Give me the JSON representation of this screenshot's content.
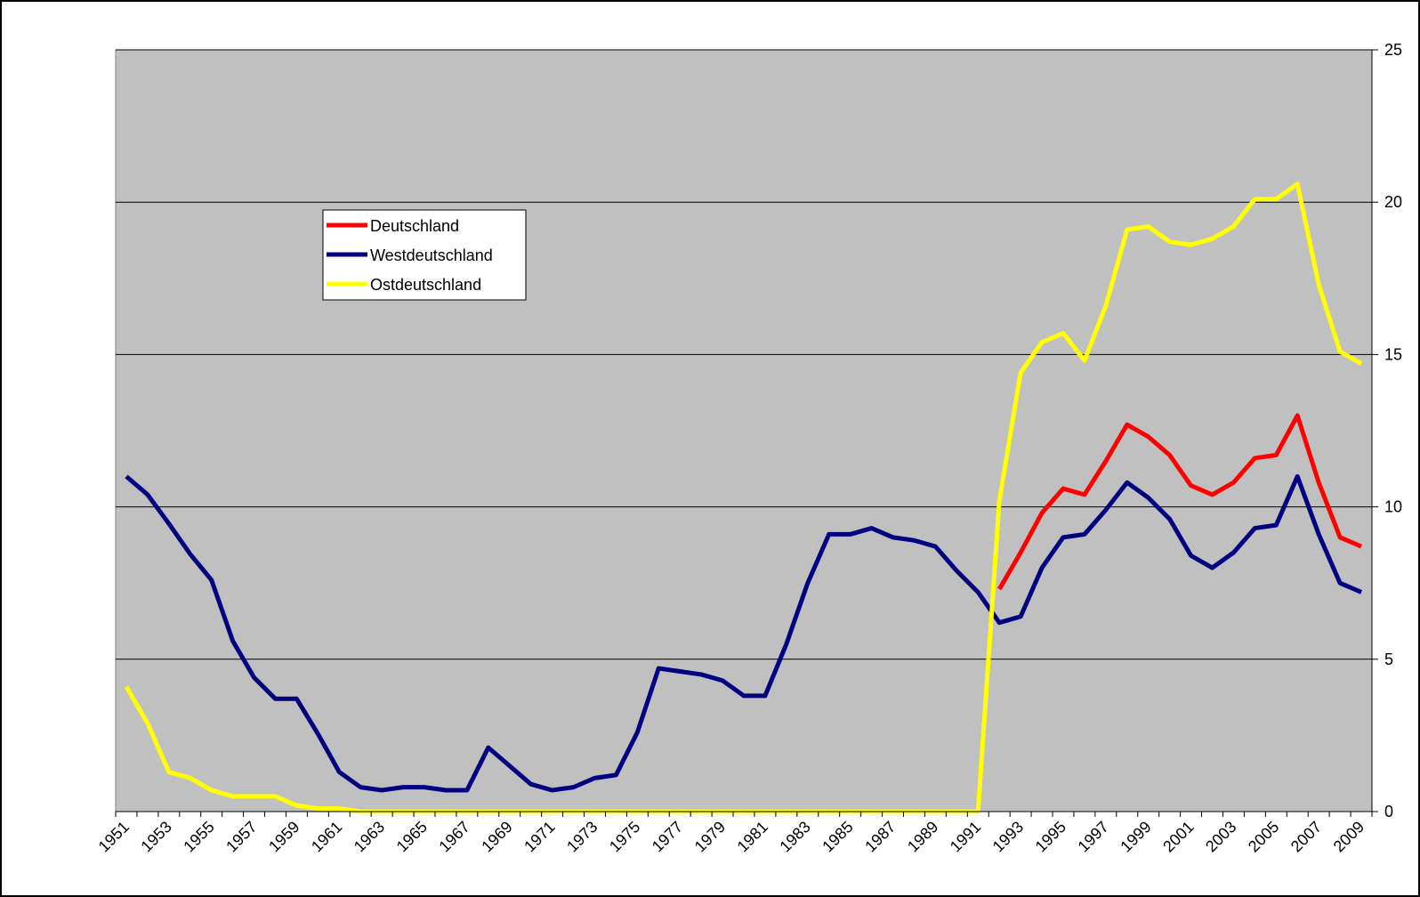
{
  "chart_data": {
    "type": "line",
    "categories": [
      "1951",
      null,
      "1953",
      null,
      "1955",
      null,
      "1957",
      null,
      "1959",
      null,
      "1961",
      null,
      "1963",
      null,
      "1965",
      null,
      "1967",
      null,
      "1969",
      null,
      "1971",
      null,
      "1973",
      null,
      "1975",
      null,
      "1977",
      null,
      "1979",
      null,
      "1981",
      null,
      "1983",
      null,
      "1985",
      null,
      "1987",
      null,
      "1989",
      null,
      "1991",
      null,
      "1993",
      null,
      "1995",
      null,
      "1997",
      null,
      "1999",
      null,
      "2001",
      null,
      "2003",
      null,
      "2005",
      null,
      "2007",
      null,
      "2009"
    ],
    "series": [
      {
        "name": "Deutschland",
        "color": "#ff0000",
        "values": [
          null,
          null,
          null,
          null,
          null,
          null,
          null,
          null,
          null,
          null,
          null,
          null,
          null,
          null,
          null,
          null,
          null,
          null,
          null,
          null,
          null,
          null,
          null,
          null,
          null,
          null,
          null,
          null,
          null,
          null,
          null,
          null,
          null,
          null,
          null,
          null,
          null,
          null,
          null,
          null,
          null,
          7.3,
          8.5,
          9.8,
          10.6,
          10.4,
          11.5,
          12.7,
          12.3,
          11.7,
          10.7,
          10.4,
          10.8,
          11.6,
          11.7,
          13.0,
          10.8,
          9.0,
          8.7
        ]
      },
      {
        "name": "Westdeutschland",
        "color": "#000080",
        "values": [
          11.0,
          10.4,
          9.45,
          8.45,
          7.6,
          5.6,
          4.4,
          3.7,
          3.7,
          2.55,
          1.3,
          0.8,
          0.7,
          0.8,
          0.8,
          0.7,
          0.7,
          2.1,
          1.5,
          0.9,
          0.7,
          0.8,
          1.1,
          1.2,
          2.6,
          4.7,
          4.6,
          4.5,
          4.3,
          3.8,
          3.8,
          5.5,
          7.5,
          9.1,
          9.1,
          9.3,
          9.0,
          8.9,
          8.7,
          7.9,
          7.2,
          6.2,
          6.4,
          8.0,
          9.0,
          9.1,
          9.9,
          10.8,
          10.3,
          9.6,
          8.4,
          8.0,
          8.5,
          9.3,
          9.4,
          11.0,
          9.1,
          7.5,
          7.2
        ]
      },
      {
        "name": "Ostdeutschland",
        "color": "#ffff00",
        "values": [
          4.1,
          2.9,
          1.3,
          1.1,
          0.7,
          0.5,
          0.5,
          0.5,
          0.2,
          0.1,
          0.1,
          0,
          0,
          0,
          0,
          0,
          0,
          0,
          0,
          0,
          0,
          0,
          0,
          0,
          0,
          0,
          0,
          0,
          0,
          0,
          0,
          0,
          0,
          0,
          0,
          0,
          0,
          0,
          0,
          0,
          0,
          10.2,
          14.4,
          15.4,
          15.7,
          14.8,
          16.6,
          19.1,
          19.2,
          18.7,
          18.6,
          18.8,
          19.2,
          20.1,
          20.1,
          20.6,
          17.3,
          15.1,
          14.7
        ]
      }
    ],
    "ylim": [
      0,
      25
    ],
    "yticks": [
      0,
      5,
      10,
      15,
      20,
      25
    ],
    "grid": true,
    "legend": "upper left"
  }
}
